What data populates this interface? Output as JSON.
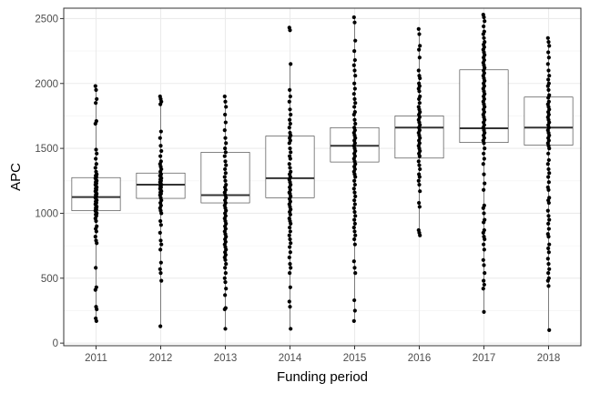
{
  "chart_data": {
    "type": "boxplot",
    "xlabel": "Funding period",
    "ylabel": "APC",
    "ylim": [
      -20,
      2580
    ],
    "yticks": [
      0,
      500,
      1000,
      1500,
      2000,
      2500
    ],
    "grid": true,
    "categories": [
      "2011",
      "2012",
      "2013",
      "2014",
      "2015",
      "2016",
      "2017",
      "2018"
    ],
    "boxes": [
      {
        "q1": 1020,
        "median": 1125,
        "q3": 1275,
        "whisker_low": 170,
        "whisker_high": 1980
      },
      {
        "q1": 1115,
        "median": 1220,
        "q3": 1310,
        "whisker_low": 130,
        "whisker_high": 1900
      },
      {
        "q1": 1080,
        "median": 1140,
        "q3": 1470,
        "whisker_low": 110,
        "whisker_high": 1900
      },
      {
        "q1": 1120,
        "median": 1270,
        "q3": 1595,
        "whisker_low": 100,
        "whisker_high": 2150
      },
      {
        "q1": 1395,
        "median": 1520,
        "q3": 1660,
        "whisker_low": 170,
        "whisker_high": 2510
      },
      {
        "q1": 1425,
        "median": 1660,
        "q3": 1750,
        "whisker_low": 830,
        "whisker_high": 2420
      },
      {
        "q1": 1545,
        "median": 1655,
        "q3": 2105,
        "whisker_low": 230,
        "whisker_high": 2530
      },
      {
        "q1": 1525,
        "median": 1660,
        "q3": 1895,
        "whisker_low": 100,
        "whisker_high": 2350
      }
    ],
    "points": [
      [
        1980,
        1950,
        1880,
        1850,
        1710,
        1690,
        1490,
        1460,
        1420,
        1380,
        1350,
        1320,
        1300,
        1290,
        1280,
        1270,
        1260,
        1250,
        1240,
        1230,
        1220,
        1210,
        1200,
        1190,
        1180,
        1170,
        1160,
        1150,
        1140,
        1130,
        1120,
        1110,
        1100,
        1090,
        1080,
        1070,
        1060,
        1050,
        1040,
        1030,
        1020,
        1010,
        1000,
        990,
        980,
        960,
        940,
        900,
        880,
        860,
        820,
        790,
        770,
        580,
        430,
        410,
        280,
        260,
        190,
        170
      ],
      [
        1900,
        1880,
        1860,
        1840,
        1630,
        1580,
        1520,
        1480,
        1440,
        1400,
        1380,
        1360,
        1340,
        1320,
        1300,
        1290,
        1280,
        1270,
        1260,
        1250,
        1240,
        1230,
        1220,
        1210,
        1200,
        1190,
        1180,
        1170,
        1160,
        1150,
        1140,
        1120,
        1100,
        1080,
        1060,
        1040,
        1020,
        1000,
        940,
        910,
        850,
        790,
        760,
        720,
        620,
        570,
        540,
        480,
        130
      ],
      [
        1900,
        1860,
        1820,
        1760,
        1700,
        1640,
        1580,
        1540,
        1500,
        1470,
        1440,
        1400,
        1370,
        1340,
        1310,
        1280,
        1250,
        1220,
        1200,
        1180,
        1160,
        1140,
        1120,
        1100,
        1080,
        1060,
        1040,
        1020,
        1000,
        980,
        960,
        940,
        920,
        900,
        880,
        860,
        840,
        820,
        800,
        780,
        760,
        740,
        720,
        700,
        680,
        660,
        640,
        610,
        580,
        540,
        500,
        470,
        420,
        370,
        270,
        260,
        110
      ],
      [
        2430,
        2410,
        2150,
        1950,
        1900,
        1860,
        1800,
        1760,
        1720,
        1690,
        1660,
        1620,
        1600,
        1580,
        1560,
        1540,
        1500,
        1470,
        1440,
        1420,
        1380,
        1350,
        1320,
        1300,
        1280,
        1260,
        1240,
        1220,
        1200,
        1180,
        1160,
        1150,
        1130,
        1110,
        1090,
        1070,
        1050,
        1030,
        1010,
        990,
        960,
        940,
        920,
        890,
        860,
        830,
        800,
        770,
        740,
        700,
        660,
        610,
        580,
        540,
        430,
        320,
        280,
        110
      ],
      [
        2510,
        2470,
        2330,
        2250,
        2180,
        2140,
        2100,
        2060,
        2000,
        1960,
        1920,
        1880,
        1850,
        1820,
        1780,
        1760,
        1720,
        1690,
        1660,
        1640,
        1620,
        1600,
        1580,
        1560,
        1540,
        1520,
        1500,
        1480,
        1460,
        1440,
        1420,
        1400,
        1380,
        1360,
        1340,
        1320,
        1300,
        1280,
        1250,
        1220,
        1190,
        1160,
        1130,
        1100,
        1070,
        1040,
        1010,
        980,
        950,
        920,
        890,
        860,
        830,
        800,
        760,
        630,
        580,
        540,
        330,
        250,
        170
      ],
      [
        2420,
        2380,
        2290,
        2260,
        2200,
        2100,
        2060,
        2040,
        2000,
        1980,
        1960,
        1940,
        1900,
        1880,
        1850,
        1820,
        1800,
        1780,
        1760,
        1740,
        1720,
        1700,
        1680,
        1660,
        1640,
        1620,
        1600,
        1580,
        1560,
        1540,
        1520,
        1500,
        1480,
        1460,
        1440,
        1400,
        1370,
        1340,
        1300,
        1280,
        1250,
        1220,
        1170,
        1080,
        1050,
        870,
        850,
        830
      ],
      [
        2530,
        2510,
        2480,
        2440,
        2400,
        2380,
        2350,
        2320,
        2300,
        2280,
        2260,
        2240,
        2220,
        2200,
        2180,
        2160,
        2140,
        2120,
        2100,
        2080,
        2060,
        2040,
        2020,
        2000,
        1980,
        1960,
        1940,
        1920,
        1900,
        1880,
        1860,
        1840,
        1820,
        1800,
        1780,
        1760,
        1740,
        1720,
        1700,
        1680,
        1660,
        1640,
        1620,
        1600,
        1580,
        1560,
        1540,
        1500,
        1460,
        1420,
        1380,
        1300,
        1230,
        1180,
        1060,
        1040,
        1000,
        950,
        930,
        870,
        850,
        820,
        800,
        760,
        720,
        640,
        600,
        540,
        480,
        450,
        420,
        240
      ],
      [
        2350,
        2320,
        2290,
        2240,
        2200,
        2150,
        2100,
        2060,
        2030,
        2000,
        1980,
        1950,
        1910,
        1890,
        1860,
        1840,
        1820,
        1800,
        1780,
        1760,
        1740,
        1720,
        1700,
        1680,
        1660,
        1640,
        1620,
        1600,
        1580,
        1560,
        1540,
        1520,
        1500,
        1460,
        1410,
        1380,
        1340,
        1310,
        1280,
        1240,
        1200,
        1180,
        1120,
        1100,
        1080,
        1020,
        980,
        950,
        920,
        880,
        840,
        820,
        760,
        730,
        700,
        650,
        610,
        570,
        540,
        500,
        480,
        440,
        100
      ]
    ]
  }
}
